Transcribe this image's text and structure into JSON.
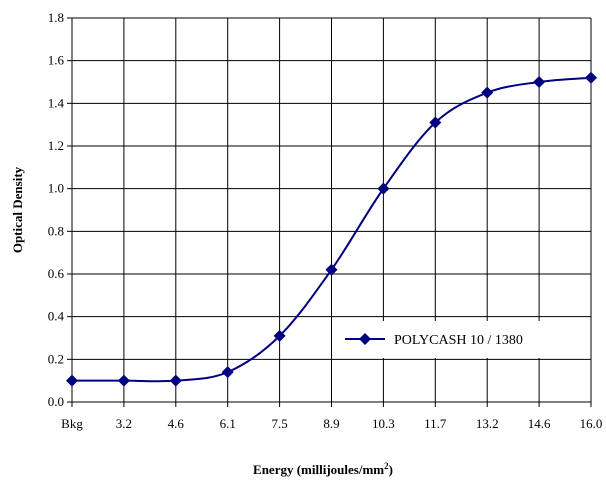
{
  "chart_data": {
    "type": "line",
    "title": "",
    "xlabel": "Energy (millijoules/mm",
    "xlabel_superscript": "2",
    "xlabel_suffix": ")",
    "ylabel": "Optical Density",
    "categories": [
      "Bkg",
      "3.2",
      "4.6",
      "6.1",
      "7.5",
      "8.9",
      "10.3",
      "11.7",
      "13.2",
      "14.6",
      "16.0"
    ],
    "yticks": [
      "0.0",
      "0.2",
      "0.4",
      "0.6",
      "0.8",
      "1.0",
      "1.2",
      "1.4",
      "1.6",
      "1.8"
    ],
    "ylim": [
      0,
      1.8
    ],
    "grid": true,
    "legend_position": "right",
    "series": [
      {
        "name": "POLYCASH 10 / 1380",
        "values": [
          0.1,
          0.1,
          0.1,
          0.14,
          0.31,
          0.62,
          1.0,
          1.31,
          1.45,
          1.5,
          1.52
        ],
        "color": "#000080",
        "marker": "diamond"
      }
    ]
  }
}
